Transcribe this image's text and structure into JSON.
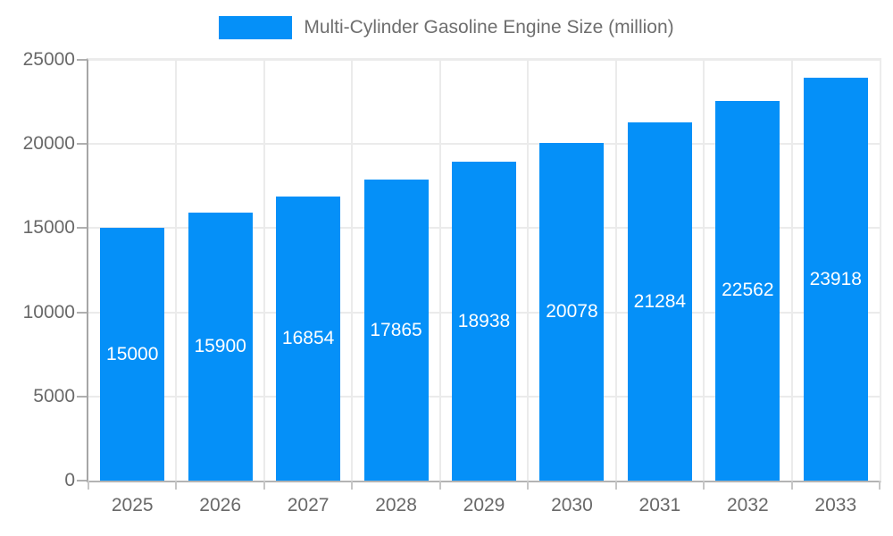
{
  "chart_data": {
    "type": "bar",
    "title": "",
    "legend": "Multi-Cylinder Gasoline Engine Size (million)",
    "legend_position": "top",
    "categories": [
      "2025",
      "2026",
      "2027",
      "2028",
      "2029",
      "2030",
      "2031",
      "2032",
      "2033"
    ],
    "values": [
      15000,
      15900,
      16854,
      17865,
      18938,
      20078,
      21284,
      22562,
      23918
    ],
    "xlabel": "",
    "ylabel": "",
    "ylim": [
      0,
      25000
    ],
    "yticks": [
      0,
      5000,
      10000,
      15000,
      20000,
      25000
    ],
    "grid": true,
    "bar_color": "#0590F8",
    "bar_label_color": "#FFFFFF",
    "axis_text_color": "#696969",
    "legend_text_color": "#6e6e6e"
  }
}
